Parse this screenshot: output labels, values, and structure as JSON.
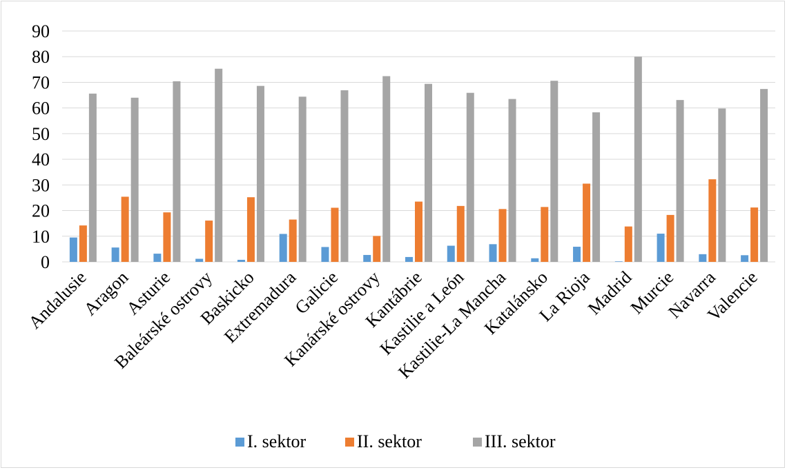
{
  "chart_data": {
    "type": "bar",
    "title": "",
    "xlabel": "",
    "ylabel": "",
    "ylim": [
      0,
      90
    ],
    "yticks": [
      0,
      10,
      20,
      30,
      40,
      50,
      60,
      70,
      80,
      90
    ],
    "grid": true,
    "legend_position": "bottom",
    "categories": [
      "Andalusie",
      "Aragon",
      "Asturie",
      "Baleárské ostrovy",
      "Baskicko",
      "Extremadura",
      "Galicie",
      "Kanárské ostrovy",
      "Kantábrie",
      "Kastilie a León",
      "Kastilie-La Mancha",
      "Katalánsko",
      "La Rioja",
      "Madrid",
      "Murcie",
      "Navarra",
      "Valencie"
    ],
    "series": [
      {
        "name": "I. sektor",
        "color": "#5b9bd5",
        "values": [
          9.5,
          5.6,
          3.2,
          1.2,
          0.8,
          10.9,
          5.8,
          2.7,
          1.9,
          6.3,
          6.9,
          1.4,
          5.9,
          0.2,
          11.0,
          3.0,
          2.6
        ]
      },
      {
        "name": "II. sektor",
        "color": "#ed7d31",
        "values": [
          14.2,
          25.4,
          19.3,
          16.1,
          25.2,
          16.5,
          21.1,
          10.1,
          23.5,
          21.8,
          20.6,
          21.4,
          30.5,
          13.8,
          18.3,
          32.2,
          21.2
        ]
      },
      {
        "name": "III. sektor",
        "color": "#a5a5a5",
        "values": [
          65.6,
          64.0,
          70.4,
          75.3,
          68.6,
          64.4,
          66.9,
          72.4,
          69.4,
          65.9,
          63.5,
          70.6,
          58.3,
          80.0,
          63.1,
          59.8,
          67.4
        ]
      }
    ]
  }
}
